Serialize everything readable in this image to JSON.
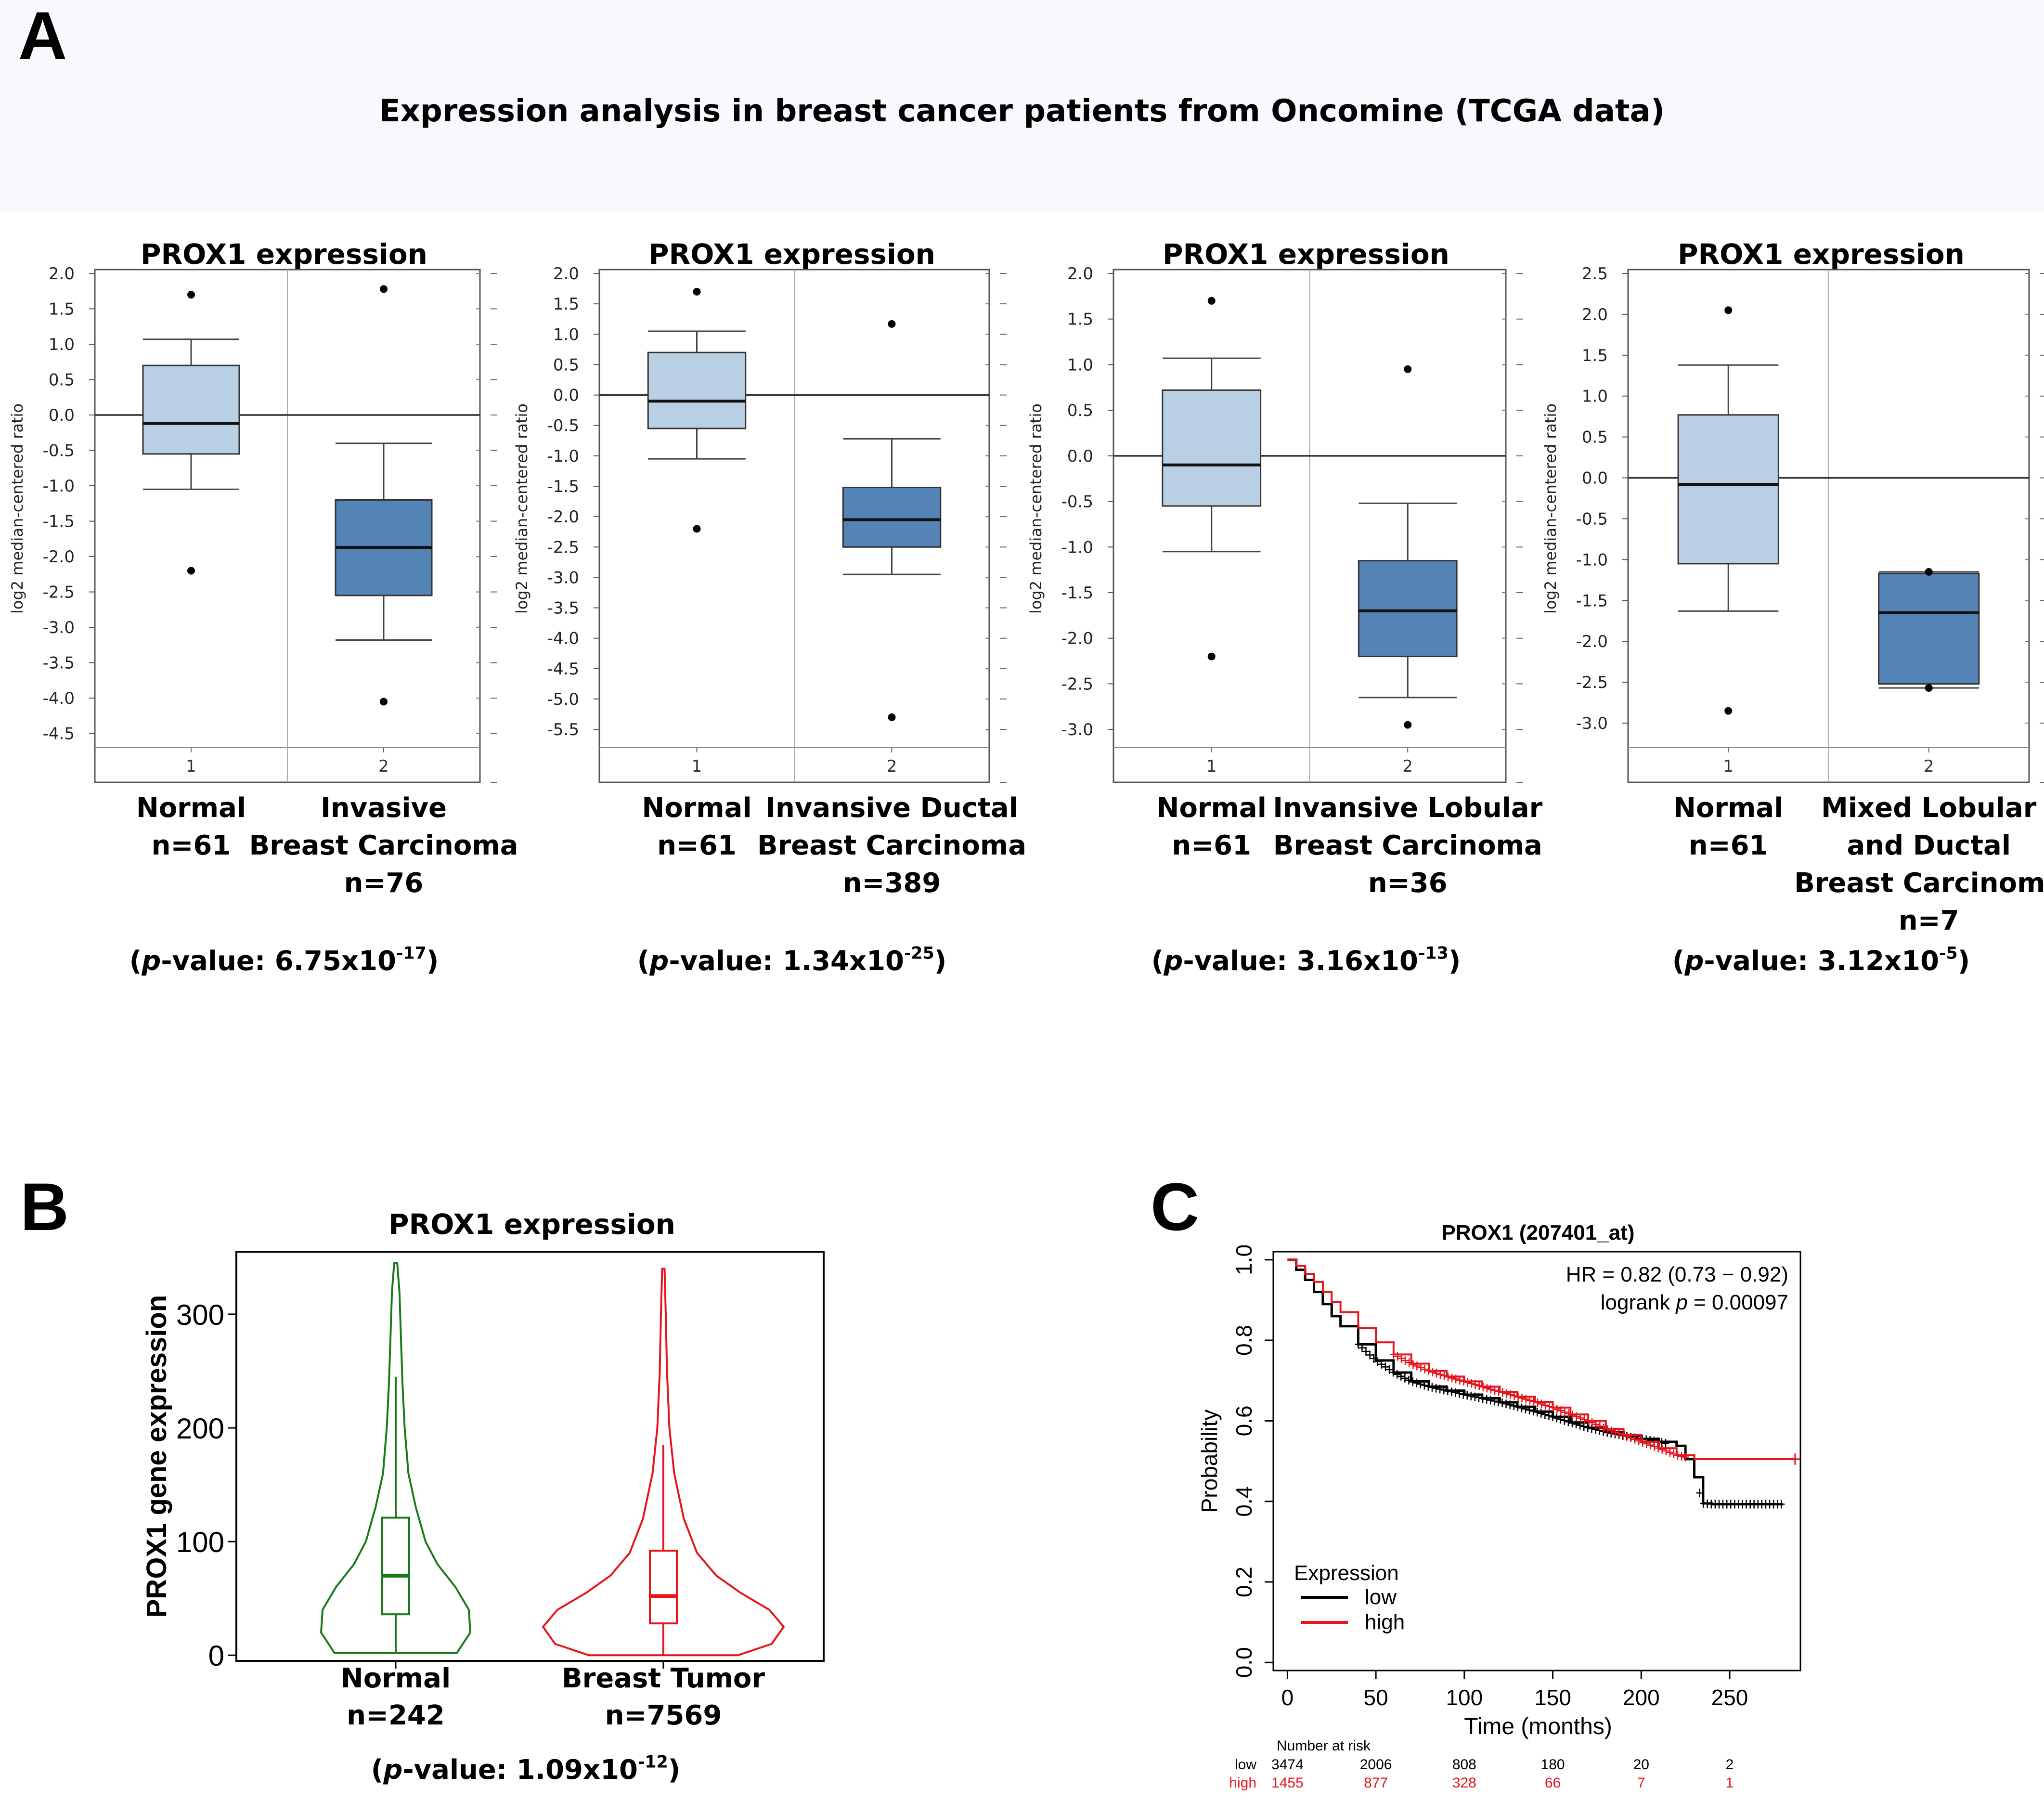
{
  "panel_labels": {
    "a": "A",
    "b": "B",
    "c": "C"
  },
  "main_title": "Expression analysis in breast cancer patients from Oncomine (TCGA data)",
  "colors": {
    "normal_box": "#b9cfe4",
    "tumor_box": "#5483b6",
    "normal_violin": "#1a7a1a",
    "tumor_violin": "#e8141d",
    "km_low": "#000000",
    "km_high": "#e8141d"
  },
  "chart_data": [
    {
      "type": "box",
      "panel": "A1",
      "title": "PROX1 expression",
      "ylabel": "log2 median-centered ratio",
      "ylim": [
        -4.7,
        2.0
      ],
      "ticks": [
        "2.0",
        "1.5",
        "1.0",
        "0.5",
        "0.0",
        "-0.5",
        "-1.0",
        "-1.5",
        "-2.0",
        "-2.5",
        "-3.0",
        "-3.5",
        "-4.0",
        "-4.5"
      ],
      "boxes": [
        {
          "x_tick": "1",
          "label_lines": [
            "Normal",
            "n=61"
          ],
          "whisker_low": -1.05,
          "q1": -0.55,
          "median": -0.12,
          "q3": 0.7,
          "whisker_high": 1.07,
          "outliers": [
            1.7,
            -2.2
          ],
          "style": "normal"
        },
        {
          "x_tick": "2",
          "label_lines": [
            "Invasive",
            "Breast Carcinoma",
            "n=76"
          ],
          "whisker_low": -3.18,
          "q1": -2.55,
          "median": -1.87,
          "q3": -1.2,
          "whisker_high": -0.4,
          "outliers": [
            1.78,
            -4.05
          ],
          "style": "tumor"
        }
      ],
      "pvalue": {
        "prefix": "(",
        "p": "p",
        "mid": "-value: 6.75x10",
        "exp": "-17",
        "suffix": ")"
      }
    },
    {
      "type": "box",
      "panel": "A2",
      "title": "PROX1 expression",
      "ylabel": "log2 median-centered ratio",
      "ylim": [
        -5.8,
        2.0
      ],
      "ticks": [
        "2.0",
        "1.5",
        "1.0",
        "0.5",
        "0.0",
        "-0.5",
        "-1.0",
        "-1.5",
        "-2.0",
        "-2.5",
        "-3.0",
        "-3.5",
        "-4.0",
        "-4.5",
        "-5.0",
        "-5.5"
      ],
      "boxes": [
        {
          "x_tick": "1",
          "label_lines": [
            "Normal",
            "n=61"
          ],
          "whisker_low": -1.05,
          "q1": -0.55,
          "median": -0.1,
          "q3": 0.7,
          "whisker_high": 1.05,
          "outliers": [
            1.7,
            -2.2
          ],
          "style": "normal"
        },
        {
          "x_tick": "2",
          "label_lines": [
            "Invansive Ductal",
            "Breast Carcinoma",
            "n=389"
          ],
          "whisker_low": -2.95,
          "q1": -2.5,
          "median": -2.05,
          "q3": -1.52,
          "whisker_high": -0.72,
          "outliers": [
            1.17,
            -5.3
          ],
          "style": "tumor"
        }
      ],
      "pvalue": {
        "prefix": "(",
        "p": "p",
        "mid": "-value: 1.34x10",
        "exp": "-25",
        "suffix": ")"
      }
    },
    {
      "type": "box",
      "panel": "A3",
      "title": "PROX1 expression",
      "ylabel": "log2 median-centered ratio",
      "ylim": [
        -3.2,
        2.0
      ],
      "ticks": [
        "2.0",
        "1.5",
        "1.0",
        "0.5",
        "0.0",
        "-0.5",
        "-1.0",
        "-1.5",
        "-2.0",
        "-2.5",
        "-3.0"
      ],
      "boxes": [
        {
          "x_tick": "1",
          "label_lines": [
            "Normal",
            "n=61"
          ],
          "whisker_low": -1.05,
          "q1": -0.55,
          "median": -0.1,
          "q3": 0.72,
          "whisker_high": 1.07,
          "outliers": [
            1.7,
            -2.2
          ],
          "style": "normal"
        },
        {
          "x_tick": "2",
          "label_lines": [
            "Invansive Lobular",
            "Breast Carcinoma",
            "n=36"
          ],
          "whisker_low": -2.65,
          "q1": -2.2,
          "median": -1.7,
          "q3": -1.15,
          "whisker_high": -0.52,
          "outliers": [
            0.95,
            -2.95
          ],
          "style": "tumor"
        }
      ],
      "pvalue": {
        "prefix": "(",
        "p": "p",
        "mid": "-value: 3.16x10",
        "exp": "-13",
        "suffix": ")"
      }
    },
    {
      "type": "box",
      "panel": "A4",
      "title": "PROX1 expression",
      "ylabel": "log2 median-centered ratio",
      "ylim": [
        -3.3,
        2.5
      ],
      "ticks": [
        "2.5",
        "2.0",
        "1.5",
        "1.0",
        "0.5",
        "0.0",
        "-0.5",
        "-1.0",
        "-1.5",
        "-2.0",
        "-2.5",
        "-3.0"
      ],
      "boxes": [
        {
          "x_tick": "1",
          "label_lines": [
            "Normal",
            "n=61"
          ],
          "whisker_low": -1.63,
          "q1": -1.05,
          "median": -0.08,
          "q3": 0.77,
          "whisker_high": 1.38,
          "outliers": [
            2.05,
            -2.85
          ],
          "style": "normal"
        },
        {
          "x_tick": "2",
          "label_lines": [
            "Mixed Lobular",
            "and Ductal",
            "Breast Carcinoma",
            "n=7"
          ],
          "whisker_low": -2.57,
          "q1": -2.52,
          "median": -1.65,
          "q3": -1.17,
          "whisker_high": -1.15,
          "outliers": [
            -1.15,
            -2.57
          ],
          "style": "tumor"
        }
      ],
      "pvalue": {
        "prefix": "(",
        "p": "p",
        "mid": "-value: 3.12x10",
        "exp": "-5",
        "suffix": ")"
      }
    },
    {
      "type": "violin",
      "panel": "B",
      "title": "PROX1 expression",
      "ylabel": "PROX1 gene expression",
      "ylim": [
        -5,
        355
      ],
      "yticks": [
        0,
        100,
        200,
        300
      ],
      "groups": [
        {
          "label": "Normal",
          "n_label": "n=242",
          "min": 2,
          "max": 345,
          "density": [
            [
              2,
              0.82
            ],
            [
              20,
              1.0
            ],
            [
              40,
              0.98
            ],
            [
              60,
              0.8
            ],
            [
              80,
              0.56
            ],
            [
              100,
              0.4
            ],
            [
              130,
              0.27
            ],
            [
              160,
              0.17
            ],
            [
              200,
              0.12
            ],
            [
              240,
              0.09
            ],
            [
              280,
              0.07
            ],
            [
              320,
              0.05
            ],
            [
              345,
              0.02
            ]
          ],
          "box": {
            "whisker_low": 2,
            "q1": 36,
            "median": 70,
            "q3": 121,
            "whisker_high": 245
          },
          "style": "normal"
        },
        {
          "label": "Breast Tumor",
          "n_label": "n=7569",
          "min": 0,
          "max": 340,
          "density": [
            [
              0,
              0.62
            ],
            [
              10,
              0.9
            ],
            [
              25,
              1.0
            ],
            [
              40,
              0.88
            ],
            [
              55,
              0.64
            ],
            [
              70,
              0.44
            ],
            [
              90,
              0.28
            ],
            [
              120,
              0.17
            ],
            [
              160,
              0.09
            ],
            [
              200,
              0.05
            ],
            [
              250,
              0.03
            ],
            [
              300,
              0.02
            ],
            [
              340,
              0.01
            ]
          ],
          "box": {
            "whisker_low": 0,
            "q1": 28,
            "median": 52,
            "q3": 92,
            "whisker_high": 185
          },
          "style": "tumor"
        }
      ],
      "pvalue": {
        "prefix": "(",
        "p": "p",
        "mid": "-value: 1.09x10",
        "exp": "-12",
        "suffix": ")"
      }
    },
    {
      "type": "line",
      "panel": "C",
      "title": "PROX1 (207401_at)",
      "xlabel": "Time (months)",
      "ylabel": "Probability",
      "xlim": [
        -8,
        290
      ],
      "ylim": [
        -0.02,
        1.02
      ],
      "xticks": [
        0,
        50,
        100,
        150,
        200,
        250
      ],
      "yticks": [
        "0.0",
        "0.2",
        "0.4",
        "0.6",
        "0.8",
        "1.0"
      ],
      "hr_text": "HR = 0.82 (0.73 − 0.92)",
      "logrank": {
        "prefix": "logrank ",
        "p": "p",
        "rest": " = 0.00097"
      },
      "legend": {
        "title": "Expression",
        "entries": [
          "low",
          "high"
        ]
      },
      "series": [
        {
          "name": "low",
          "x": [
            0,
            5,
            10,
            15,
            20,
            25,
            30,
            40,
            50,
            60,
            70,
            80,
            90,
            100,
            110,
            120,
            130,
            140,
            150,
            160,
            170,
            180,
            190,
            200,
            210,
            220,
            225,
            228,
            230,
            235,
            240,
            250,
            260,
            270,
            280
          ],
          "y": [
            1.0,
            0.975,
            0.95,
            0.92,
            0.89,
            0.86,
            0.835,
            0.79,
            0.75,
            0.72,
            0.698,
            0.685,
            0.675,
            0.665,
            0.656,
            0.646,
            0.635,
            0.623,
            0.61,
            0.596,
            0.583,
            0.572,
            0.563,
            0.555,
            0.548,
            0.538,
            0.505,
            0.505,
            0.46,
            0.395,
            0.393,
            0.393,
            0.393,
            0.393,
            0.393
          ],
          "censor_ranges": [
            [
              40,
              215
            ],
            [
              233,
              280
            ]
          ]
        },
        {
          "name": "high",
          "x": [
            0,
            5,
            10,
            15,
            20,
            25,
            30,
            40,
            50,
            60,
            70,
            80,
            90,
            100,
            110,
            120,
            130,
            140,
            150,
            160,
            170,
            180,
            190,
            200,
            210,
            220,
            230,
            250,
            270,
            287
          ],
          "y": [
            1.0,
            0.985,
            0.965,
            0.945,
            0.92,
            0.895,
            0.87,
            0.83,
            0.795,
            0.765,
            0.742,
            0.724,
            0.71,
            0.698,
            0.685,
            0.672,
            0.66,
            0.647,
            0.633,
            0.616,
            0.6,
            0.58,
            0.565,
            0.548,
            0.532,
            0.515,
            0.505,
            0.505,
            0.505,
            0.505
          ],
          "censor_ranges": [
            [
              60,
              225
            ]
          ],
          "end_marker": 287
        }
      ],
      "risk_table": {
        "header": "Number at risk",
        "times": [
          "0",
          "50",
          "100",
          "150",
          "200",
          "250"
        ],
        "rows": [
          {
            "label": "low",
            "values": [
              "3474",
              "2006",
              "808",
              "180",
              "20",
              "2"
            ]
          },
          {
            "label": "high",
            "values": [
              "1455",
              "877",
              "328",
              "66",
              "7",
              "1"
            ]
          }
        ]
      }
    }
  ]
}
